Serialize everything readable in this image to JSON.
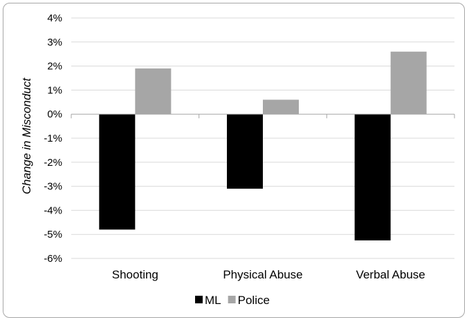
{
  "chart_data": {
    "type": "bar",
    "title": "",
    "xlabel": "",
    "ylabel": "Change in Misconduct",
    "categories": [
      "Shooting",
      "Physical Abuse",
      "Verbal Abuse"
    ],
    "series": [
      {
        "name": "ML",
        "values": [
          -4.8,
          -3.1,
          -5.25
        ],
        "color": "#000000"
      },
      {
        "name": "Police",
        "values": [
          1.9,
          0.6,
          2.6
        ],
        "color": "#a6a6a6"
      }
    ],
    "ylim": [
      -6,
      4
    ],
    "yticks": [
      4,
      3,
      2,
      1,
      0,
      -1,
      -2,
      -3,
      -4,
      -5,
      -6
    ],
    "ytick_format": "%",
    "grid": true,
    "legend": "bottom"
  }
}
